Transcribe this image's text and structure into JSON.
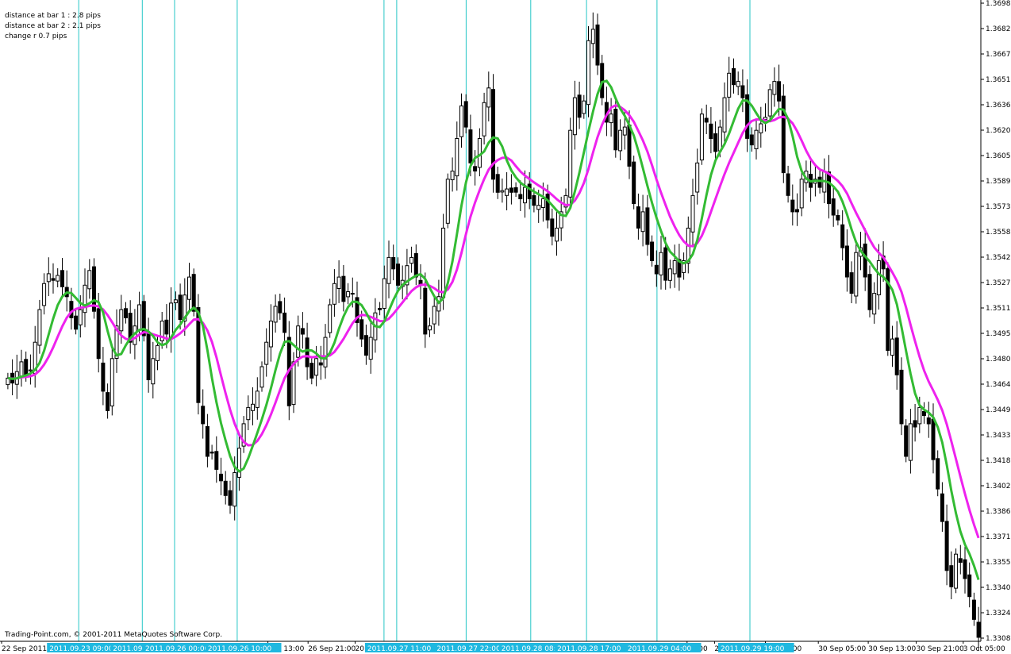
{
  "info": {
    "line1": "distance at bar 1 : 2.8 pips",
    "line2": "distance at bar 2 : 2.1 pips",
    "line3": "change r 0.7 pips"
  },
  "copyright": "Trading-Point.com, © 2001-2011 MetaQuotes Software Corp.",
  "colors": {
    "background": "#ffffff",
    "bull_body": "#ffffff",
    "bear_body": "#000000",
    "candle_outline": "#000000",
    "ma_fast": "#33bb33",
    "ma_slow": "#ee22ee",
    "vertical_lines": "#26c6c6",
    "vline_label_bg": "#1fb8e0"
  },
  "chart_data": {
    "type": "candlestick",
    "symbol_scale": "price",
    "ylim": [
      1.33085,
      1.3698
    ],
    "price_ticks": [
      "1.36980",
      "1.36825",
      "1.36670",
      "1.36515",
      "1.36360",
      "1.36205",
      "1.36050",
      "1.35890",
      "1.35735",
      "1.35580",
      "1.35425",
      "1.35270",
      "1.35115",
      "1.34955",
      "1.34800",
      "1.34645",
      "1.34490",
      "1.34335",
      "1.34180",
      "1.34020",
      "1.33865",
      "1.33710",
      "1.33555",
      "1.33400",
      "1.33245",
      "1.33085"
    ],
    "time_labels": [
      "22 Sep 2011",
      "Sep 13:00",
      "26 Sep 21:00",
      "20:",
      "05:00",
      "29",
      "Sep 21:00",
      "30 Sep 05:00",
      "30 Sep 13:00",
      "30 Sep 21:00",
      "3 Oct 05:00"
    ],
    "vertical_line_labels": [
      "2011.09.23 09:00",
      "2011.09.",
      "2011.09.26 00:00",
      "2011.09.26 10:00",
      "2011.09.27 11:00",
      "2011.09.27 22:00",
      "2011.09.28 08:0",
      "2011.09.28 17:00",
      "2011.09.29 04:00",
      "2011.09.29 19:00"
    ],
    "close": [
      1.3468,
      1.3465,
      1.3472,
      1.3478,
      1.347,
      1.3473,
      1.349,
      1.351,
      1.3526,
      1.3532,
      1.3528,
      1.3531,
      1.3524,
      1.3518,
      1.3505,
      1.3498,
      1.351,
      1.3525,
      1.3534,
      1.3509,
      1.348,
      1.346,
      1.3448,
      1.348,
      1.35,
      1.351,
      1.3505,
      1.349,
      1.35,
      1.3513,
      1.3494,
      1.3467,
      1.348,
      1.3488,
      1.3503,
      1.3495,
      1.3514,
      1.3516,
      1.3504,
      1.3519,
      1.353,
      1.3509,
      1.3453,
      1.344,
      1.342,
      1.3422,
      1.3412,
      1.3405,
      1.3396,
      1.339,
      1.341,
      1.3425,
      1.344,
      1.345,
      1.3452,
      1.346,
      1.3475,
      1.349,
      1.3503,
      1.3512,
      1.3508,
      1.3496,
      1.3451,
      1.3478,
      1.35,
      1.3495,
      1.3475,
      1.3468,
      1.348,
      1.3476,
      1.3493,
      1.3513,
      1.3526,
      1.353,
      1.3515,
      1.3521,
      1.352,
      1.3502,
      1.3492,
      1.3482,
      1.3493,
      1.3508,
      1.351,
      1.3529,
      1.3542,
      1.3535,
      1.3525,
      1.3528,
      1.3537,
      1.3542,
      1.353,
      1.3525,
      1.3495,
      1.35,
      1.3512,
      1.3518,
      1.356,
      1.359,
      1.3595,
      1.3615,
      1.3635,
      1.3622,
      1.36,
      1.3595,
      1.3615,
      1.3637,
      1.3646,
      1.359,
      1.3582,
      1.3583,
      1.3584,
      1.3582,
      1.3582,
      1.3578,
      1.3585,
      1.3578,
      1.3574,
      1.3574,
      1.3578,
      1.3565,
      1.3555,
      1.356,
      1.357,
      1.358,
      1.362,
      1.364,
      1.3628,
      1.3638,
      1.3675,
      1.3682,
      1.366,
      1.364,
      1.3625,
      1.363,
      1.3608,
      1.362,
      1.3622,
      1.3598,
      1.3575,
      1.356,
      1.357,
      1.355,
      1.354,
      1.3532,
      1.3545,
      1.3528,
      1.3535,
      1.354,
      1.353,
      1.354,
      1.356,
      1.358,
      1.36,
      1.363,
      1.3625,
      1.3615,
      1.3607,
      1.3622,
      1.364,
      1.3655,
      1.3648,
      1.365,
      1.364,
      1.3615,
      1.3611,
      1.362,
      1.3624,
      1.3628,
      1.3645,
      1.365,
      1.3638,
      1.3594,
      1.358,
      1.357,
      1.357,
      1.359,
      1.3595,
      1.3585,
      1.359,
      1.3585,
      1.3595,
      1.3575,
      1.3568,
      1.3565,
      1.3548,
      1.353,
      1.352,
      1.3545,
      1.3548,
      1.353,
      1.351,
      1.352,
      1.354,
      1.3535,
      1.3485,
      1.3492,
      1.347,
      1.344,
      1.342,
      1.344,
      1.3438,
      1.345,
      1.3445,
      1.344,
      1.3418,
      1.34,
      1.338,
      1.335,
      1.334,
      1.336,
      1.3355,
      1.3345,
      1.3334,
      1.332,
      1.3309
    ]
  }
}
